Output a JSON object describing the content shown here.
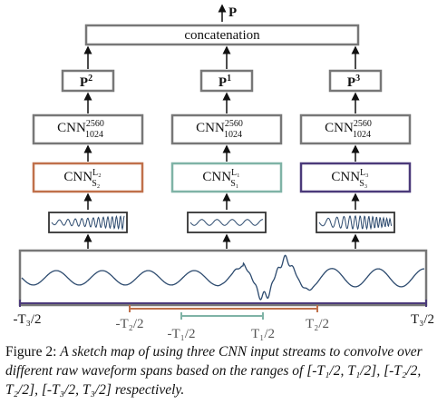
{
  "output": "P",
  "concat": "concatenation",
  "streams": [
    {
      "pooled": {
        "base": "P",
        "sup": "2"
      },
      "shared": {
        "base": "CNN",
        "sup": "2560",
        "sub": "1024"
      },
      "input_cnn": {
        "base": "CNN",
        "sup": "L₂",
        "sub": "S₂"
      }
    },
    {
      "pooled": {
        "base": "P",
        "sup": "1"
      },
      "shared": {
        "base": "CNN",
        "sup": "2560",
        "sub": "1024"
      },
      "input_cnn": {
        "base": "CNN",
        "sup": "L₁",
        "sub": "S₁"
      }
    },
    {
      "pooled": {
        "base": "P",
        "sup": "3"
      },
      "shared": {
        "base": "CNN",
        "sup": "2560",
        "sub": "1024"
      },
      "input_cnn": {
        "base": "CNN",
        "sup": "L₃",
        "sub": "S₃"
      }
    }
  ],
  "ranges": [
    {
      "start": "-T₃/2",
      "end": "T₃/2"
    },
    {
      "start": "-T₂/2",
      "end": "T₂/2"
    },
    {
      "start": "-T₁/2",
      "end": "T₁/2"
    }
  ],
  "caption": {
    "label": "Figure 2:",
    "text": "A sketch map of using three CNN input streams to convolve over different raw waveform spans based on the ranges of [-T₁/2, T₁/2], [-T₂/2, T₂/2], [-T₃/2, T₃/2] respectively."
  }
}
